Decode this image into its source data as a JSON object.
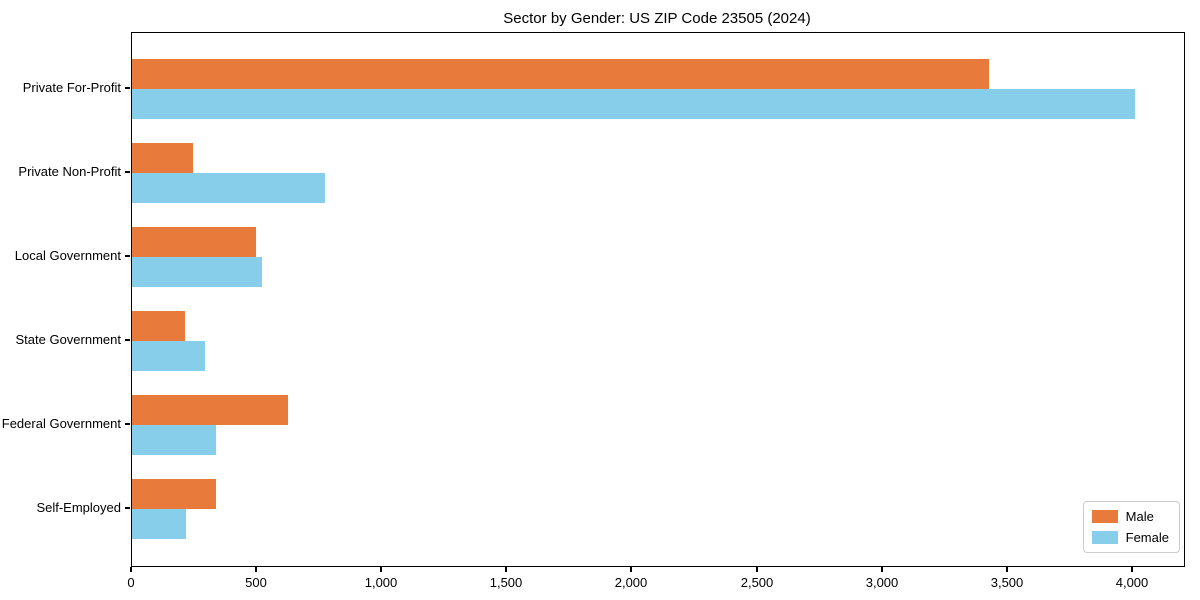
{
  "chart_data": {
    "type": "bar",
    "orientation": "horizontal",
    "title": "Sector by Gender: US ZIP Code 23505 (2024)",
    "categories": [
      "Private For-Profit",
      "Private Non-Profit",
      "Local Government",
      "State Government",
      "Federal Government",
      "Self-Employed"
    ],
    "series": [
      {
        "name": "Male",
        "color": "#e87a3c",
        "values": [
          3425,
          245,
          495,
          210,
          625,
          335
        ]
      },
      {
        "name": "Female",
        "color": "#87ceeb",
        "values": [
          4010,
          770,
          520,
          290,
          335,
          215
        ]
      }
    ],
    "x_ticks": [
      0,
      500,
      1000,
      1500,
      2000,
      2500,
      3000,
      3500,
      4000
    ],
    "x_tick_labels": [
      "0",
      "500",
      "1,000",
      "1,500",
      "2,000",
      "2,500",
      "3,000",
      "3,500",
      "4,000"
    ],
    "xlim": [
      0,
      4204
    ],
    "grid": false,
    "legend_position": "lower right",
    "axis_color": "#000000"
  }
}
